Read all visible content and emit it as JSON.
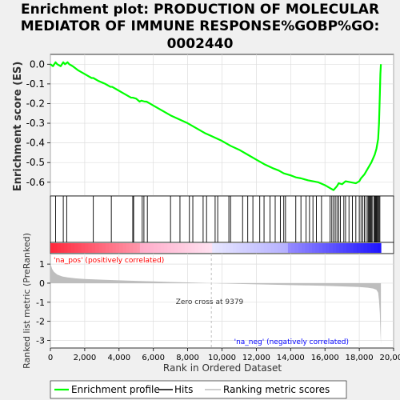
{
  "title_lines": [
    "Enrichment plot: PRODUCTION OF MOLECULAR",
    "MEDIATOR OF IMMUNE RESPONSE%GOBP%GO:",
    "0002440"
  ],
  "legend": {
    "enrichment_profile": "Enrichment profile",
    "hits": "Hits",
    "ranking_metric_scores": "Ranking metric scores"
  },
  "colors": {
    "enrichment_line": "#00ff00",
    "hits": "#000000",
    "metric_fill": "#bebebe",
    "positive": "#ff0000",
    "negative": "#0000ff",
    "zero_cross_line": "#bebebe"
  },
  "annotations": {
    "na_pos": "'na_pos' (positively correlated)",
    "na_neg": "'na_neg' (negatively correlated)",
    "zero_cross": "Zero cross at 9379"
  },
  "chart_data": [
    {
      "type": "line",
      "name": "enrichment-score",
      "ylabel": "Enrichment score (ES)",
      "xlim": [
        0,
        20000
      ],
      "ylim": [
        -0.67,
        0.05
      ],
      "yticks": [
        0.0,
        -0.1,
        -0.2,
        -0.3,
        -0.4,
        -0.5,
        -0.6
      ],
      "ytick_labels": [
        "0.0",
        "-0.1",
        "-0.2",
        "-0.3",
        "-0.4",
        "-0.5",
        "-0.6"
      ],
      "grid": true,
      "x": [
        0,
        150,
        300,
        400,
        600,
        750,
        850,
        1000,
        1100,
        1300,
        1600,
        2000,
        2400,
        2500,
        2800,
        3200,
        3500,
        3600,
        3900,
        4300,
        4700,
        4800,
        5000,
        5200,
        5300,
        5500,
        5600,
        5800,
        6000,
        6500,
        7000,
        7500,
        8000,
        8500,
        9000,
        9379,
        10000,
        10500,
        11000,
        11500,
        12000,
        12500,
        13000,
        13300,
        13600,
        14000,
        14300,
        14600,
        15000,
        15300,
        15600,
        16000,
        16300,
        16500,
        16700,
        16800,
        17000,
        17200,
        17500,
        17800,
        18000,
        18100,
        18300,
        18500,
        18700,
        18900,
        19000,
        19100,
        19150,
        19200,
        19230,
        19260
      ],
      "y": [
        0.0,
        -0.01,
        0.01,
        0.0,
        -0.01,
        0.01,
        0.0,
        0.01,
        0.0,
        -0.01,
        -0.03,
        -0.05,
        -0.07,
        -0.07,
        -0.085,
        -0.1,
        -0.115,
        -0.115,
        -0.13,
        -0.15,
        -0.17,
        -0.17,
        -0.175,
        -0.19,
        -0.185,
        -0.19,
        -0.19,
        -0.2,
        -0.21,
        -0.235,
        -0.26,
        -0.28,
        -0.3,
        -0.325,
        -0.35,
        -0.365,
        -0.39,
        -0.415,
        -0.435,
        -0.46,
        -0.485,
        -0.51,
        -0.53,
        -0.54,
        -0.555,
        -0.565,
        -0.575,
        -0.58,
        -0.59,
        -0.595,
        -0.6,
        -0.615,
        -0.63,
        -0.64,
        -0.62,
        -0.605,
        -0.61,
        -0.595,
        -0.6,
        -0.605,
        -0.595,
        -0.58,
        -0.56,
        -0.53,
        -0.5,
        -0.46,
        -0.43,
        -0.38,
        -0.3,
        -0.15,
        -0.05,
        0.0
      ]
    },
    {
      "type": "scatter",
      "name": "hits",
      "hit_positions": [
        300,
        750,
        950,
        2500,
        3550,
        4800,
        4850,
        5350,
        5450,
        5650,
        7000,
        7550,
        8100,
        8300,
        8900,
        9100,
        9600,
        9750,
        10400,
        10500,
        11200,
        11500,
        11800,
        12200,
        12450,
        12800,
        13100,
        13400,
        13600,
        13700,
        14300,
        14600,
        14900,
        15100,
        15300,
        15500,
        15800,
        16300,
        16400,
        16500,
        16600,
        16700,
        16800,
        16900,
        17100,
        17200,
        17400,
        17600,
        17800,
        18000,
        18100,
        18200,
        18300,
        18400,
        18500,
        18550,
        18600,
        18650,
        18700,
        18750,
        18850,
        18900,
        18950,
        19000,
        19050,
        19100,
        19150,
        19200
      ]
    },
    {
      "type": "area",
      "name": "ranked-list-metric",
      "ylabel": "Ranked list metric (PreRanked)",
      "xlabel": "Rank in Ordered Dataset",
      "xlim": [
        0,
        20000
      ],
      "ylim": [
        -3.4,
        1.55
      ],
      "xticks": [
        0,
        2000,
        4000,
        6000,
        8000,
        10000,
        12000,
        14000,
        16000,
        18000,
        20000
      ],
      "xtick_labels": [
        "0",
        "2,000",
        "4,000",
        "6,000",
        "8,000",
        "10,000",
        "12,000",
        "14,000",
        "16,000",
        "18,000",
        "20,000"
      ],
      "yticks": [
        1,
        0,
        -1,
        -2,
        -3
      ],
      "ytick_labels": [
        "1",
        "0",
        "-1",
        "-2",
        "-3"
      ],
      "zero_cross": 9379,
      "x": [
        0,
        30,
        100,
        200,
        400,
        700,
        1000,
        1500,
        2000,
        3000,
        4000,
        5000,
        6000,
        7000,
        8000,
        9000,
        9379,
        10000,
        11000,
        12000,
        13000,
        14000,
        15000,
        16000,
        17000,
        18000,
        18500,
        18800,
        19000,
        19100,
        19150,
        19200,
        19230,
        19260
      ],
      "y": [
        1.1,
        0.95,
        0.75,
        0.6,
        0.45,
        0.35,
        0.3,
        0.25,
        0.22,
        0.18,
        0.15,
        0.12,
        0.09,
        0.06,
        0.04,
        0.01,
        0.0,
        -0.02,
        -0.04,
        -0.06,
        -0.08,
        -0.1,
        -0.12,
        -0.14,
        -0.17,
        -0.2,
        -0.24,
        -0.28,
        -0.35,
        -0.5,
        -0.9,
        -1.6,
        -2.5,
        -3.2
      ]
    }
  ]
}
